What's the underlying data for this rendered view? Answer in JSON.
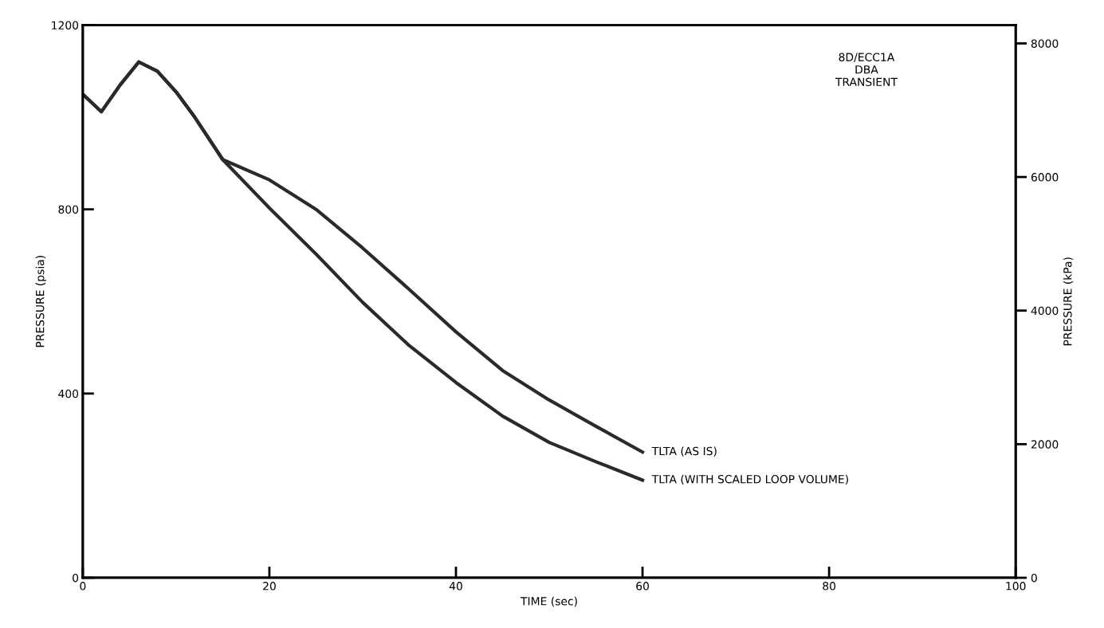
{
  "chart_data": {
    "type": "line",
    "xlabel": "TIME (sec)",
    "ylabel": "PRESSURE (psia)",
    "y2label": "PRESSURE (kPa)",
    "xlim": [
      0,
      100
    ],
    "xticks": [
      0,
      20,
      40,
      60,
      80,
      100
    ],
    "ylim": [
      0,
      1200
    ],
    "yticks": [
      0,
      400,
      800,
      1200
    ],
    "y2lim": [
      0,
      8274
    ],
    "y2ticks": [
      0,
      2000,
      4000,
      6000,
      8000
    ],
    "grid": false,
    "legend": false,
    "annotations": [
      "8D/ECC1A\nDBA\nTRANSIENT"
    ],
    "series": [
      {
        "name": "TLTA (AS IS)",
        "color": "#2a2a2a",
        "x": [
          0,
          2,
          4,
          6,
          8,
          10,
          12,
          15,
          20,
          25,
          30,
          35,
          40,
          45,
          50,
          55,
          60
        ],
        "values": [
          1050,
          1012,
          1070,
          1120,
          1100,
          1055,
          1000,
          908,
          864,
          800,
          716,
          626,
          534,
          450,
          386,
          329,
          273
        ]
      },
      {
        "name": "TLTA (WITH SCALED LOOP VOLUME)",
        "color": "#2a2a2a",
        "x": [
          0,
          2,
          4,
          6,
          8,
          10,
          12,
          15,
          20,
          25,
          30,
          35,
          40,
          45,
          50,
          55,
          60
        ],
        "values": [
          1050,
          1012,
          1070,
          1120,
          1100,
          1055,
          1000,
          908,
          803,
          703,
          598,
          504,
          424,
          351,
          294,
          252,
          212
        ]
      }
    ]
  }
}
